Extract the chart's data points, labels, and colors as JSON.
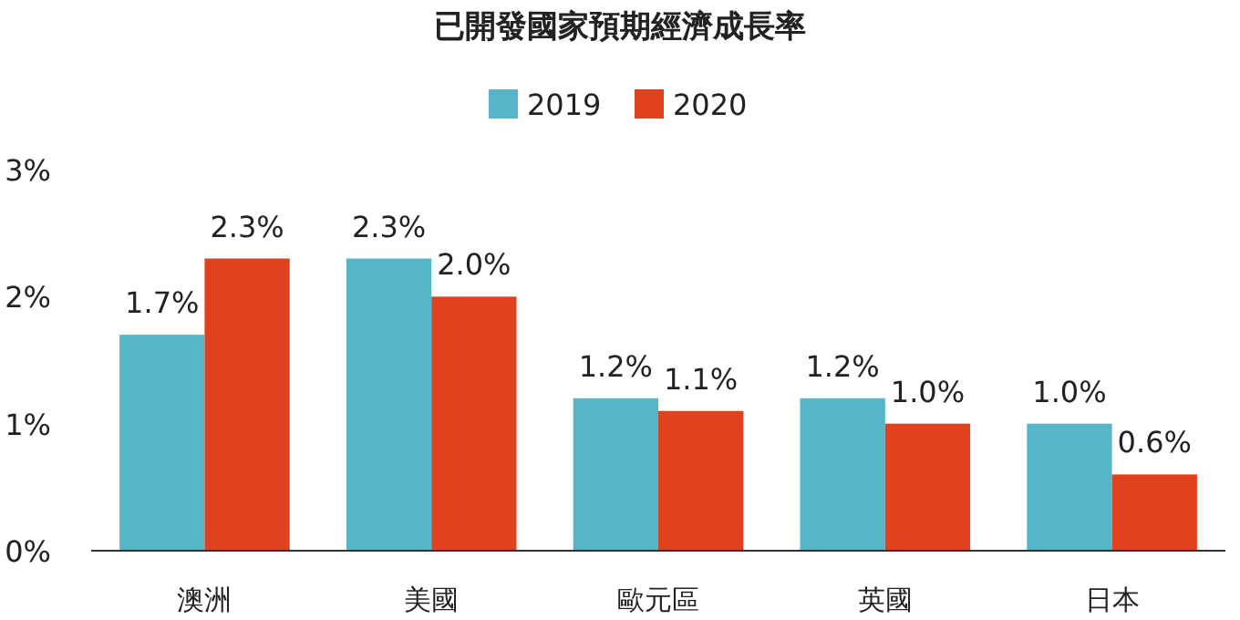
{
  "chart_data": {
    "type": "bar",
    "title": "已開發國家預期經濟成長率",
    "categories": [
      "澳洲",
      "美國",
      "歐元區",
      "英國",
      "日本"
    ],
    "series": [
      {
        "name": "2019",
        "color": "#56b5c7",
        "values": [
          1.7,
          2.3,
          1.2,
          1.2,
          1.0
        ],
        "value_labels": [
          "1.7%",
          "2.3%",
          "1.2%",
          "1.2%",
          "1.0%"
        ]
      },
      {
        "name": "2020",
        "color": "#e0411f",
        "values": [
          2.3,
          2.0,
          1.1,
          1.0,
          0.6
        ],
        "value_labels": [
          "2.3%",
          "2.0%",
          "1.1%",
          "1.0%",
          "0.6%"
        ]
      }
    ],
    "ylim": [
      0,
      3
    ],
    "yticks": [
      {
        "value": 0,
        "label": "0%"
      },
      {
        "value": 1,
        "label": "1%"
      },
      {
        "value": 2,
        "label": "2%"
      },
      {
        "value": 3,
        "label": "3%"
      }
    ],
    "legend": "top",
    "grid": false
  }
}
